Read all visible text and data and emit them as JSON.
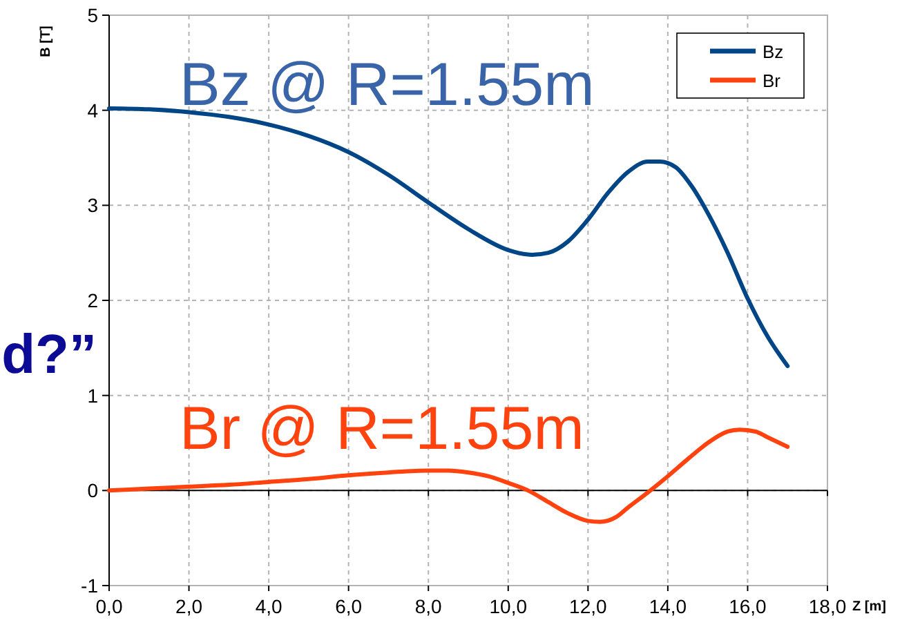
{
  "chart_data": {
    "type": "line",
    "xlabel": "Z [m]",
    "ylabel": "B [T]",
    "xlim": [
      0,
      18
    ],
    "ylim": [
      -1,
      5
    ],
    "xticks": [
      {
        "value": 0,
        "label": "0,0"
      },
      {
        "value": 2,
        "label": "2,0"
      },
      {
        "value": 4,
        "label": "4,0"
      },
      {
        "value": 6,
        "label": "6,0"
      },
      {
        "value": 8,
        "label": "8,0"
      },
      {
        "value": 10,
        "label": "10,0"
      },
      {
        "value": 12,
        "label": "12,0"
      },
      {
        "value": 14,
        "label": "14,0"
      },
      {
        "value": 16,
        "label": "16,0"
      },
      {
        "value": 18,
        "label": "18,0"
      }
    ],
    "yticks": [
      -1,
      0,
      1,
      2,
      3,
      4,
      5
    ],
    "grid": true,
    "legend": "top right",
    "marker": "none",
    "line_style": "solid",
    "series": [
      {
        "name": "Bz",
        "color": "#004586",
        "x": [
          0,
          1,
          2,
          3,
          4,
          5,
          6,
          7,
          8,
          9,
          10,
          10.6,
          11,
          11.5,
          12,
          12.5,
          13,
          13.5,
          13.8,
          14.2,
          14.6,
          15,
          15.5,
          16,
          16.5,
          17
        ],
        "values": [
          4.02,
          4.01,
          3.98,
          3.93,
          3.85,
          3.73,
          3.56,
          3.32,
          3.03,
          2.75,
          2.53,
          2.48,
          2.5,
          2.62,
          2.85,
          3.13,
          3.35,
          3.46,
          3.46,
          3.4,
          3.2,
          2.92,
          2.5,
          2.02,
          1.62,
          1.31
        ]
      },
      {
        "name": "Br",
        "color": "#ff420e",
        "x": [
          0,
          1,
          2,
          3,
          4,
          5,
          6,
          7,
          8,
          8.5,
          9,
          9.5,
          10,
          10.5,
          11,
          11.5,
          12,
          12.3,
          12.7,
          13,
          13.5,
          14,
          14.5,
          15,
          15.5,
          15.8,
          16.2,
          16.5,
          17
        ],
        "values": [
          0,
          0.02,
          0.04,
          0.06,
          0.09,
          0.12,
          0.16,
          0.19,
          0.21,
          0.21,
          0.19,
          0.15,
          0.08,
          0,
          -0.12,
          -0.24,
          -0.32,
          -0.33,
          -0.28,
          -0.18,
          -0.02,
          0.15,
          0.33,
          0.5,
          0.62,
          0.64,
          0.62,
          0.56,
          0.46
        ]
      }
    ],
    "annotations": [
      "Bz @ R=1.55m",
      "Br @ R=1.55m",
      "d?”"
    ]
  }
}
